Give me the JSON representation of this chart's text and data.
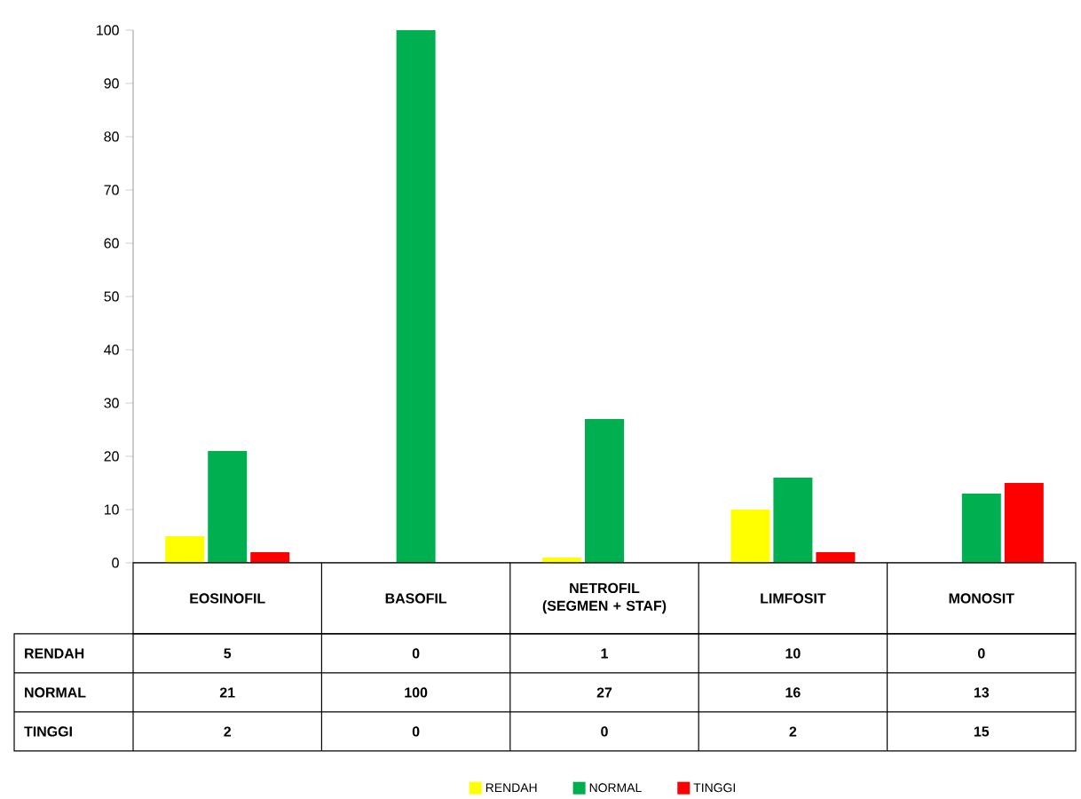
{
  "chart_data": {
    "type": "bar",
    "categories": [
      "EOSINOFIL",
      "BASOFIL",
      "NETROFIL (SEGMEN + STAF)",
      "LIMFOSIT",
      "MONOSIT"
    ],
    "series": [
      {
        "name": "RENDAH",
        "color": "#ffff00",
        "values": [
          5,
          0,
          1,
          10,
          0
        ]
      },
      {
        "name": "NORMAL",
        "color": "#00b050",
        "values": [
          21,
          100,
          27,
          16,
          13
        ]
      },
      {
        "name": "TINGGI",
        "color": "#ff0000",
        "values": [
          2,
          0,
          0,
          2,
          15
        ]
      }
    ],
    "ylim": [
      0,
      100
    ],
    "yticks": [
      0,
      10,
      20,
      30,
      40,
      50,
      60,
      70,
      80,
      90,
      100
    ],
    "data_labels": true,
    "grid": false,
    "legend": "bottom"
  }
}
